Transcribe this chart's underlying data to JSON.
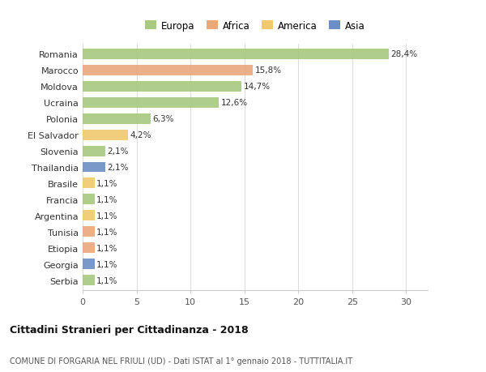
{
  "countries": [
    "Romania",
    "Marocco",
    "Moldova",
    "Ucraina",
    "Polonia",
    "El Salvador",
    "Slovenia",
    "Thailandia",
    "Brasile",
    "Francia",
    "Argentina",
    "Tunisia",
    "Etiopia",
    "Georgia",
    "Serbia"
  ],
  "values": [
    28.4,
    15.8,
    14.7,
    12.6,
    6.3,
    4.2,
    2.1,
    2.1,
    1.1,
    1.1,
    1.1,
    1.1,
    1.1,
    1.1,
    1.1
  ],
  "continents": [
    "Europa",
    "Africa",
    "Europa",
    "Europa",
    "Europa",
    "America",
    "Europa",
    "Asia",
    "America",
    "Europa",
    "America",
    "Africa",
    "Africa",
    "Asia",
    "Europa"
  ],
  "continent_colors": {
    "Europa": "#a8c97f",
    "Africa": "#e8a87c",
    "America": "#f0c96e",
    "Asia": "#6b8fc4"
  },
  "legend_order": [
    "Europa",
    "Africa",
    "America",
    "Asia"
  ],
  "title": "Cittadini Stranieri per Cittadinanza - 2018",
  "subtitle": "COMUNE DI FORGARIA NEL FRIULI (UD) - Dati ISTAT al 1° gennaio 2018 - TUTTITALIA.IT",
  "xlim": [
    0,
    32
  ],
  "xticks": [
    0,
    5,
    10,
    15,
    20,
    25,
    30
  ],
  "background_color": "#ffffff",
  "grid_color": "#dddddd"
}
